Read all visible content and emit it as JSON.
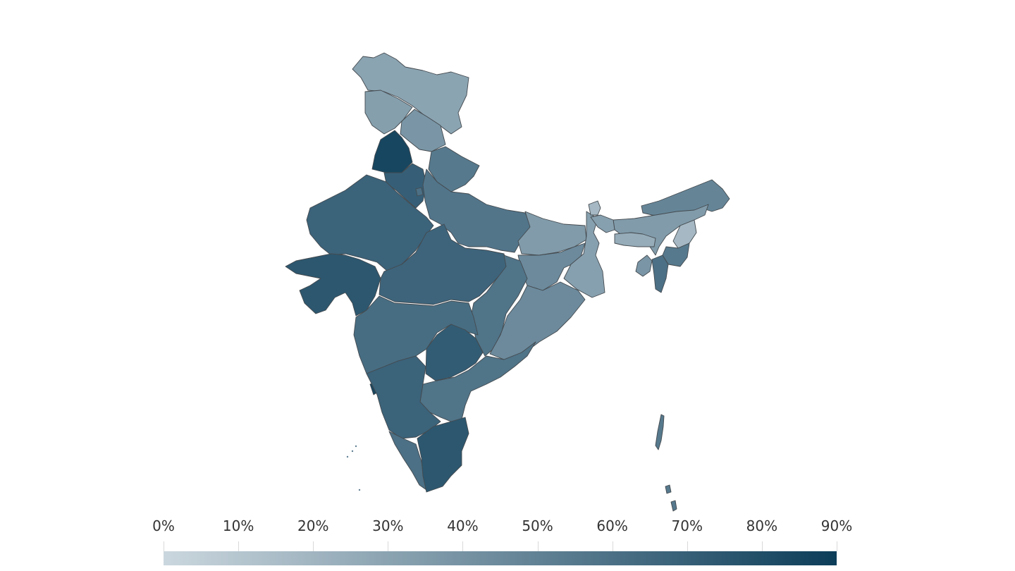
{
  "chart_data": {
    "type": "choropleth",
    "title": "",
    "region": "India (states and union territories)",
    "colorscale": {
      "min": 0,
      "max": 90,
      "unit": "%",
      "low_color": "#cbd7de",
      "high_color": "#0c3d59",
      "ticks": [
        "0%",
        "10%",
        "20%",
        "30%",
        "40%",
        "50%",
        "60%",
        "70%",
        "80%",
        "90%"
      ]
    },
    "values": [
      {
        "region": "Jammu & Kashmir",
        "value": 30
      },
      {
        "region": "Ladakh",
        "value": 33
      },
      {
        "region": "Himachal Pradesh",
        "value": 38
      },
      {
        "region": "Punjab",
        "value": 85
      },
      {
        "region": "Haryana",
        "value": 70
      },
      {
        "region": "Delhi",
        "value": 60
      },
      {
        "region": "Uttarakhand",
        "value": 55
      },
      {
        "region": "Rajasthan",
        "value": 68
      },
      {
        "region": "Uttar Pradesh",
        "value": 57
      },
      {
        "region": "Gujarat",
        "value": 75
      },
      {
        "region": "Madhya Pradesh",
        "value": 67
      },
      {
        "region": "Bihar",
        "value": 35
      },
      {
        "region": "Jharkhand",
        "value": 45
      },
      {
        "region": "West Bengal",
        "value": 32
      },
      {
        "region": "Odisha",
        "value": 45
      },
      {
        "region": "Chhattisgarh",
        "value": 58
      },
      {
        "region": "Maharashtra",
        "value": 62
      },
      {
        "region": "Telangana",
        "value": 72
      },
      {
        "region": "Andhra Pradesh",
        "value": 58
      },
      {
        "region": "Karnataka",
        "value": 68
      },
      {
        "region": "Goa",
        "value": 85
      },
      {
        "region": "Kerala",
        "value": 60
      },
      {
        "region": "Tamil Nadu",
        "value": 75
      },
      {
        "region": "Sikkim",
        "value": 18
      },
      {
        "region": "Arunachal Pradesh",
        "value": 48
      },
      {
        "region": "Assam",
        "value": 35
      },
      {
        "region": "Meghalaya",
        "value": 25
      },
      {
        "region": "Nagaland",
        "value": 18
      },
      {
        "region": "Manipur",
        "value": 55
      },
      {
        "region": "Mizoram",
        "value": 60
      },
      {
        "region": "Tripura",
        "value": 38
      },
      {
        "region": "Andaman & Nicobar Islands",
        "value": 55
      },
      {
        "region": "Lakshadweep",
        "value": 50
      }
    ],
    "legend_position": "bottom",
    "grid": false
  }
}
